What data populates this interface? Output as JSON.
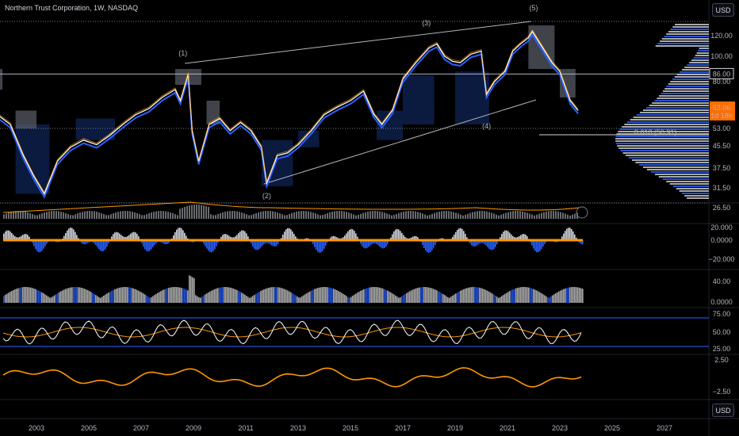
{
  "header": {
    "title": "Northern Trust Corporation, 1W, NASDAQ",
    "currency_button": "USD",
    "currency_button_bottom": "USD"
  },
  "colors": {
    "bg": "#000000",
    "blue": "#2962ff",
    "orange": "#ff9800",
    "white": "#ffffff",
    "grey": "#787b86",
    "navy": "#0d1e4a"
  },
  "chart_data": {
    "type": "line",
    "price_axis": {
      "ticks": [
        "120.00",
        "100.00",
        "80.00",
        "63.00",
        "53.00",
        "45.50",
        "37.50",
        "31.50",
        "26.50"
      ]
    },
    "x_ticks": [
      "2003",
      "2005",
      "2007",
      "2009",
      "2011",
      "2013",
      "2015",
      "2017",
      "2019",
      "2021",
      "2023",
      "2025",
      "2027"
    ],
    "last_price": "63.06",
    "countdown": "1d 18h",
    "level_86": "86.00",
    "fib_label": "0.618 (50.91)",
    "wave_labels": [
      "(1)",
      "(2)",
      "(3)",
      "(4)",
      "(5)"
    ],
    "price_series": {
      "x": [
        2001.5,
        2002.0,
        2002.5,
        2002.9,
        2003.3,
        2003.8,
        2004.3,
        2004.8,
        2005.3,
        2005.8,
        2006.3,
        2006.8,
        2007.3,
        2007.8,
        2008.3,
        2008.5,
        2008.8,
        2008.95,
        2009.2,
        2009.6,
        2010.0,
        2010.4,
        2010.8,
        2011.2,
        2011.6,
        2011.8,
        2012.2,
        2012.6,
        2013.0,
        2013.5,
        2014.0,
        2014.5,
        2015.0,
        2015.5,
        2015.9,
        2016.2,
        2016.6,
        2017.0,
        2017.5,
        2018.0,
        2018.3,
        2018.6,
        2018.9,
        2019.2,
        2019.6,
        2020.0,
        2020.2,
        2020.5,
        2020.9,
        2021.2,
        2021.5,
        2021.8,
        2021.95,
        2022.3,
        2022.7,
        2023.0,
        2023.4,
        2023.7
      ],
      "y": [
        60,
        55,
        42,
        35,
        30,
        40,
        45,
        48,
        46,
        50,
        55,
        60,
        63,
        70,
        75,
        68,
        86,
        52,
        40,
        55,
        58,
        52,
        56,
        52,
        45,
        33,
        42,
        43,
        46,
        52,
        60,
        64,
        68,
        74,
        60,
        55,
        62,
        82,
        95,
        108,
        112,
        100,
        96,
        95,
        102,
        105,
        72,
        80,
        88,
        105,
        112,
        118,
        124,
        110,
        95,
        88,
        68,
        62
      ]
    }
  },
  "indicators": {
    "vol_label": "",
    "osc1_ticks": [
      "20.000",
      "0.0000",
      "−20.000"
    ],
    "osc2_ticks": [
      "40.00",
      "0.0000"
    ],
    "rsi_ticks": [
      "75.00",
      "50.00",
      "25.00"
    ],
    "osc4_ticks": [
      "2.50",
      "−2.50"
    ]
  }
}
